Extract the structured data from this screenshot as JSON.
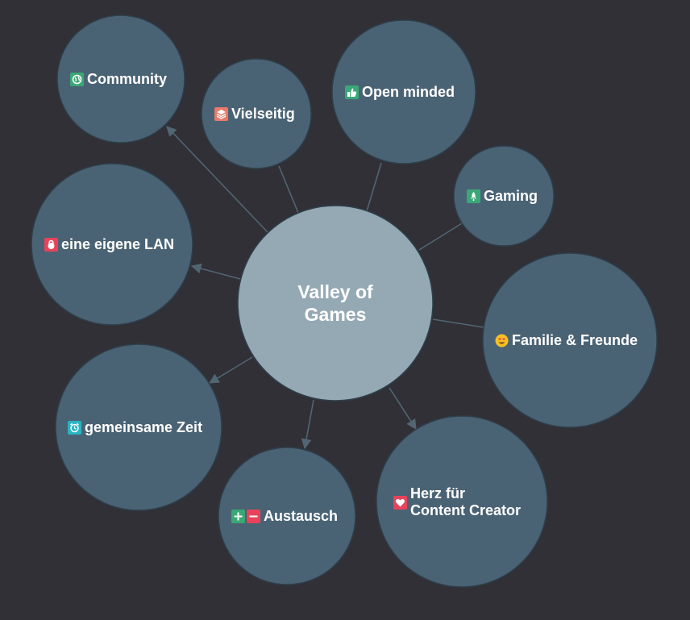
{
  "center": {
    "label": "Valley of\nGames",
    "color": "#95a9b5"
  },
  "node_color": "#4a6374",
  "background": "#303036",
  "nodes": [
    {
      "id": "community",
      "label": "Community",
      "icon": "globe-icon",
      "icon_color": "#3aa876"
    },
    {
      "id": "vielseitig",
      "label": "Vielseitig",
      "icon": "layers-icon",
      "icon_color": "#e87a6a"
    },
    {
      "id": "open-minded",
      "label": "Open minded",
      "icon": "thumbs-up-icon",
      "icon_color": "#3aa876"
    },
    {
      "id": "gaming",
      "label": "Gaming",
      "icon": "rocket-icon",
      "icon_color": "#3aa876"
    },
    {
      "id": "familie",
      "label": "Familie & Freunde",
      "icon": "heart-eyes-emoji-icon",
      "icon_color": "#f5c021"
    },
    {
      "id": "herz",
      "label": "Herz für\nContent Creator",
      "icon": "heart-icon",
      "icon_color": "#e8435a"
    },
    {
      "id": "austausch",
      "label": "Austausch",
      "icon": "plus-minus-icon",
      "icon_color": "#3aa876"
    },
    {
      "id": "zeit",
      "label": "gemeinsame Zeit",
      "icon": "alarm-clock-icon",
      "icon_color": "#28b5c2"
    },
    {
      "id": "lan",
      "label": "eine eigene LAN",
      "icon": "kettlebell-icon",
      "icon_color": "#e8435a"
    }
  ]
}
